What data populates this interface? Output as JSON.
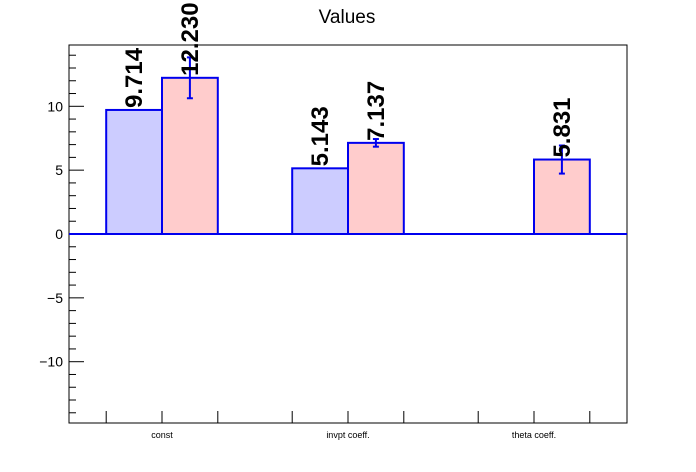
{
  "chart_data": {
    "type": "bar",
    "title": "Values",
    "xlabel": "",
    "ylabel": "",
    "categories": [
      "const",
      "invpt coeff.",
      "theta coeff."
    ],
    "ylim": [
      -14.8,
      14.8
    ],
    "yticks": [
      -10,
      -5,
      0,
      5,
      10
    ],
    "ytick_labels": [
      "−10",
      "−5",
      "0",
      "5",
      "10"
    ],
    "grid": false,
    "series": [
      {
        "values": [
          9.714,
          5.143,
          null
        ],
        "labels": [
          "9.714",
          "5.143",
          ""
        ],
        "errors": [
          null,
          null,
          null
        ],
        "color": "#ccccff",
        "edge_color": "#0000ee"
      },
      {
        "values": [
          12.23,
          7.137,
          5.831
        ],
        "labels": [
          "12.230",
          "7.137",
          "5.831"
        ],
        "errors": [
          1.6,
          0.3,
          1.1
        ],
        "color": "#ffcccc",
        "edge_color": "#0000ee"
      }
    ],
    "error_color": "#0000ee",
    "baseline_color": "#0000ee",
    "axis_color": "#000000"
  }
}
